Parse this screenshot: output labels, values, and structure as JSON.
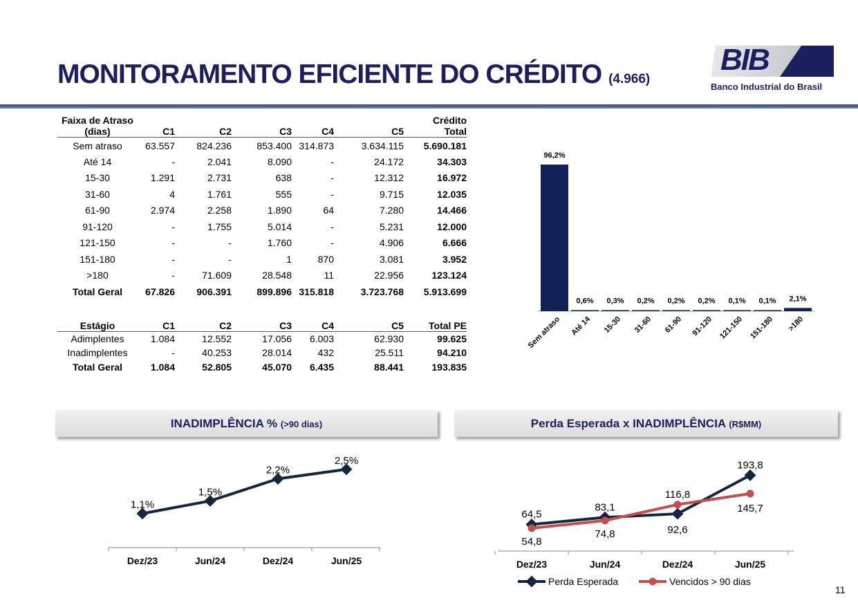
{
  "header": {
    "title": "MONITORAMENTO EFICIENTE DO CRÉDITO",
    "title_note": "(4.966)",
    "logo_text": "BIB",
    "logo_subtitle": "Banco Industrial do Brasil"
  },
  "table_credit": {
    "headers": [
      "Faixa de Atraso (dias)",
      "C1",
      "C2",
      "C3",
      "C4",
      "C5",
      "Crédito Total"
    ],
    "rows": [
      [
        "Sem atraso",
        "63.557",
        "824.236",
        "853.400",
        "314.873",
        "3.634.115",
        "5.690.181"
      ],
      [
        "Até 14",
        "-",
        "2.041",
        "8.090",
        "-",
        "24.172",
        "34.303"
      ],
      [
        "15-30",
        "1.291",
        "2.731",
        "638",
        "-",
        "12.312",
        "16.972"
      ],
      [
        "31-60",
        "4",
        "1.761",
        "555",
        "-",
        "9.715",
        "12.035"
      ],
      [
        "61-90",
        "2.974",
        "2.258",
        "1.890",
        "64",
        "7.280",
        "14.466"
      ],
      [
        "91-120",
        "-",
        "1.755",
        "5.014",
        "-",
        "5.231",
        "12.000"
      ],
      [
        "121-150",
        "-",
        "-",
        "1.760",
        "-",
        "4.906",
        "6.666"
      ],
      [
        "151-180",
        "-",
        "-",
        "1",
        "870",
        "3.081",
        "3.952"
      ],
      [
        ">180",
        "-",
        "71.609",
        "28.548",
        "11",
        "22.956",
        "123.124"
      ],
      [
        "Total Geral",
        "67.826",
        "906.391",
        "899.896",
        "315.818",
        "3.723.768",
        "5.913.699"
      ]
    ]
  },
  "table_pe": {
    "headers": [
      "Estágio",
      "C1",
      "C2",
      "C3",
      "C4",
      "C5",
      "Total PE"
    ],
    "rows": [
      [
        "Adimplentes",
        "1.084",
        "12.552",
        "17.056",
        "6.003",
        "62.930",
        "99.625"
      ],
      [
        "Inadimplentes",
        "-",
        "40.253",
        "28.014",
        "432",
        "25.511",
        "94.210"
      ],
      [
        "Total Geral",
        "1.084",
        "52.805",
        "45.070",
        "6.435",
        "88.441",
        "193.835"
      ]
    ]
  },
  "panel1": {
    "title": "INADIMPLÊNCIA %",
    "note": "(>90 dias)"
  },
  "panel2": {
    "title": "Perda Esperada x INADIMPLÊNCIA",
    "note": "(R$MM)"
  },
  "page_number": "11",
  "chart_data": [
    {
      "type": "bar",
      "categories": [
        "Sem atraso",
        "Até 14",
        "15-30",
        "31-60",
        "61-90",
        "91-120",
        "121-150",
        "151-180",
        ">180"
      ],
      "values": [
        96.2,
        0.6,
        0.3,
        0.2,
        0.2,
        0.2,
        0.1,
        0.1,
        2.1
      ],
      "labels": [
        "96,2%",
        "0,6%",
        "0,3%",
        "0,2%",
        "0,2%",
        "0,2%",
        "0,1%",
        "0,1%",
        "2,1%"
      ],
      "color": "#0f2157",
      "ylim": [
        0,
        100
      ]
    },
    {
      "type": "line",
      "categories": [
        "Dez/23",
        "Jun/24",
        "Dez/24",
        "Jun/25"
      ],
      "series": [
        {
          "name": "Inadimplência %",
          "values": [
            1.1,
            1.5,
            2.2,
            2.5
          ],
          "labels": [
            "1,1%",
            "1,5%",
            "2,2%",
            "2,5%"
          ],
          "color": "#15243f"
        }
      ]
    },
    {
      "type": "line",
      "categories": [
        "Dez/23",
        "Jun/24",
        "Dez/24",
        "Jun/25"
      ],
      "legend": "bottom",
      "series": [
        {
          "name": "Perda Esperada",
          "values": [
            64.5,
            83.1,
            92.6,
            193.8
          ],
          "labels": [
            "64,5",
            "83,1",
            "92,6",
            "193,8"
          ],
          "color": "#15243f"
        },
        {
          "name": "Vencidos > 90 dias",
          "values": [
            54.8,
            74.8,
            116.8,
            145.7
          ],
          "labels": [
            "54,8",
            "74,8",
            "116,8",
            "145,7"
          ],
          "color": "#c0504d"
        }
      ]
    }
  ]
}
